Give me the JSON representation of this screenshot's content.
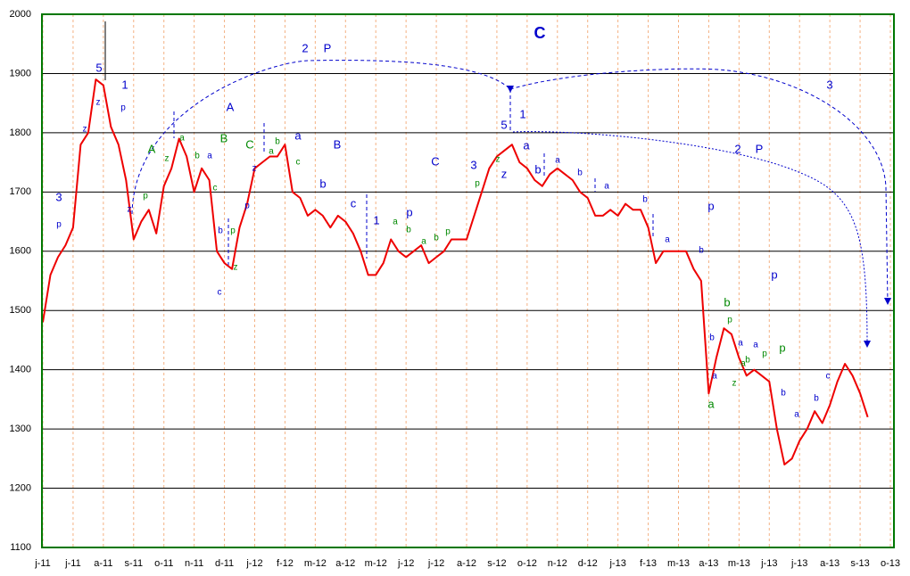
{
  "chart_data": {
    "type": "line",
    "categories": [
      "j-11",
      null,
      null,
      null,
      "j-11",
      null,
      null,
      null,
      "a-11",
      null,
      null,
      null,
      "s-11",
      null,
      null,
      null,
      "o-11",
      null,
      null,
      null,
      "n-11",
      null,
      null,
      null,
      "d-11",
      null,
      null,
      null,
      "j-12",
      null,
      null,
      null,
      "f-12",
      null,
      null,
      null,
      "m-12",
      null,
      null,
      null,
      "a-12",
      null,
      null,
      null,
      "m-12",
      null,
      null,
      null,
      "j-12",
      null,
      null,
      null,
      "j-12",
      null,
      null,
      null,
      "a-12",
      null,
      null,
      null,
      "s-12",
      null,
      null,
      null,
      "o-12",
      null,
      null,
      null,
      "n-12",
      null,
      null,
      null,
      "d-12",
      null,
      null,
      null,
      "j-13",
      null,
      null,
      null,
      "f-13",
      null,
      null,
      null,
      "m-13",
      null,
      null,
      null,
      "a-13",
      null,
      null,
      null,
      "m-13",
      null,
      null,
      null,
      "j-13",
      null,
      null,
      null,
      "j-13",
      null,
      null,
      null,
      "a-13",
      null,
      null,
      null,
      "s-13",
      null,
      null,
      null,
      "o-13"
    ],
    "series": [
      {
        "color": "#ee0000",
        "values": [
          1480,
          1560,
          1590,
          1610,
          1640,
          1780,
          1800,
          1890,
          1880,
          1810,
          1780,
          1720,
          1620,
          1650,
          1670,
          1630,
          1710,
          1740,
          1790,
          1760,
          1700,
          1740,
          1720,
          1600,
          1580,
          1570,
          1640,
          1680,
          1740,
          1750,
          1760,
          1760,
          1780,
          1700,
          1690,
          1660,
          1670,
          1660,
          1640,
          1660,
          1650,
          1630,
          1600,
          1560,
          1560,
          1580,
          1620,
          1600,
          1590,
          1600,
          1610,
          1580,
          1590,
          1600,
          1620,
          1620,
          1620,
          1660,
          1700,
          1740,
          1760,
          1770,
          1780,
          1750,
          1740,
          1720,
          1710,
          1730,
          1740,
          1730,
          1720,
          1700,
          1690,
          1660,
          1660,
          1670,
          1660,
          1680,
          1670,
          1670,
          1640,
          1580,
          1600,
          1600,
          1600,
          1600,
          1570,
          1550,
          1360,
          1420,
          1470,
          1460,
          1420,
          1390,
          1400,
          1390,
          1380,
          1300,
          1240,
          1250,
          1280,
          1300,
          1330,
          1310,
          1340,
          1380,
          1410,
          1390,
          1360,
          1320,
          null,
          null,
          null
        ]
      }
    ],
    "ylim": [
      1100,
      2000
    ],
    "yticks": [
      1100,
      1200,
      1300,
      1400,
      1500,
      1600,
      1700,
      1800,
      1900,
      2000
    ],
    "grid": true,
    "annotations": [
      {
        "text": "C",
        "color": "#0000cc"
      },
      {
        "text": "2",
        "color": "#0000cc"
      },
      {
        "text": "P",
        "color": "#0000cc"
      },
      {
        "text": "5",
        "color": "#0000cc"
      },
      {
        "text": "1",
        "color": "#0000cc"
      },
      {
        "text": "p",
        "color": "#0000cc"
      },
      {
        "text": "z",
        "color": "#0000cc"
      },
      {
        "text": "z",
        "color": "#0000cc"
      },
      {
        "text": "3",
        "color": "#0000cc"
      },
      {
        "text": "p",
        "color": "#0000cc"
      },
      {
        "text": "A",
        "color": "#0000cc"
      },
      {
        "text": "A",
        "color": "#008800"
      },
      {
        "text": "B",
        "color": "#008800"
      },
      {
        "text": "C",
        "color": "#008800"
      },
      {
        "text": "z",
        "color": "#0000cc"
      },
      {
        "text": "p",
        "color": "#008800"
      },
      {
        "text": "z",
        "color": "#008800"
      },
      {
        "text": "a",
        "color": "#008800"
      },
      {
        "text": "b",
        "color": "#008800"
      },
      {
        "text": "a",
        "color": "#0000cc"
      },
      {
        "text": "c",
        "color": "#008800"
      },
      {
        "text": "b",
        "color": "#0000cc"
      },
      {
        "text": "p",
        "color": "#008800"
      },
      {
        "text": "z",
        "color": "#008800"
      },
      {
        "text": "c",
        "color": "#0000cc"
      },
      {
        "text": "p",
        "color": "#0000cc"
      },
      {
        "text": "z",
        "color": "#0000cc"
      },
      {
        "text": "a",
        "color": "#008800"
      },
      {
        "text": "b",
        "color": "#008800"
      },
      {
        "text": "a",
        "color": "#0000cc"
      },
      {
        "text": "c",
        "color": "#008800"
      },
      {
        "text": "B",
        "color": "#0000cc"
      },
      {
        "text": "b",
        "color": "#0000cc"
      },
      {
        "text": "c",
        "color": "#0000cc"
      },
      {
        "text": "1",
        "color": "#0000cc"
      },
      {
        "text": "a",
        "color": "#008800"
      },
      {
        "text": "p",
        "color": "#0000cc"
      },
      {
        "text": "b",
        "color": "#008800"
      },
      {
        "text": "a",
        "color": "#008800"
      },
      {
        "text": "b",
        "color": "#008800"
      },
      {
        "text": "p",
        "color": "#008800"
      },
      {
        "text": "C",
        "color": "#0000cc"
      },
      {
        "text": "3",
        "color": "#0000cc"
      },
      {
        "text": "p",
        "color": "#008800"
      },
      {
        "text": "z",
        "color": "#008800"
      },
      {
        "text": "5",
        "color": "#0000cc"
      },
      {
        "text": "z",
        "color": "#0000cc"
      },
      {
        "text": "1",
        "color": "#0000cc"
      },
      {
        "text": "a",
        "color": "#0000cc"
      },
      {
        "text": "b",
        "color": "#0000cc"
      },
      {
        "text": "a",
        "color": "#0000cc"
      },
      {
        "text": "b",
        "color": "#0000cc"
      },
      {
        "text": "a",
        "color": "#0000cc"
      },
      {
        "text": "b",
        "color": "#0000cc"
      },
      {
        "text": "a",
        "color": "#0000cc"
      },
      {
        "text": "b",
        "color": "#0000cc"
      },
      {
        "text": "p",
        "color": "#0000cc"
      },
      {
        "text": "2",
        "color": "#0000cc"
      },
      {
        "text": "P",
        "color": "#0000cc"
      },
      {
        "text": "3",
        "color": "#0000cc"
      },
      {
        "text": "p",
        "color": "#0000cc"
      },
      {
        "text": "b",
        "color": "#008800"
      },
      {
        "text": "p",
        "color": "#008800"
      },
      {
        "text": "b",
        "color": "#0000cc"
      },
      {
        "text": "a",
        "color": "#0000cc"
      },
      {
        "text": "a",
        "color": "#008800"
      },
      {
        "text": "a",
        "color": "#0000cc"
      },
      {
        "text": "a",
        "color": "#008800"
      },
      {
        "text": "b",
        "color": "#008800"
      },
      {
        "text": "z",
        "color": "#008800"
      },
      {
        "text": "a",
        "color": "#0000cc"
      },
      {
        "text": "p",
        "color": "#008800"
      },
      {
        "text": "p",
        "color": "#008800"
      },
      {
        "text": "b",
        "color": "#0000cc"
      },
      {
        "text": "a",
        "color": "#0000cc"
      },
      {
        "text": "b",
        "color": "#0000cc"
      },
      {
        "text": "c",
        "color": "#0000cc"
      }
    ]
  }
}
